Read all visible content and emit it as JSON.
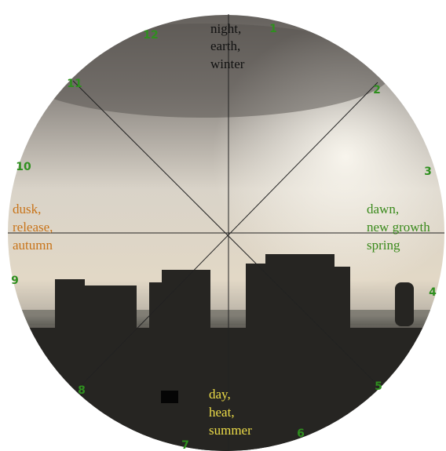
{
  "hours": [
    "12",
    "1",
    "2",
    "3",
    "4",
    "5",
    "6",
    "7",
    "8",
    "9",
    "10",
    "11"
  ],
  "north": [
    "night,",
    "earth,",
    "winter"
  ],
  "west": [
    "dusk,",
    "release,",
    "autumn"
  ],
  "east": [
    "dawn,",
    "new growth",
    "spring"
  ],
  "south": [
    "day,",
    "heat,",
    "summer"
  ]
}
